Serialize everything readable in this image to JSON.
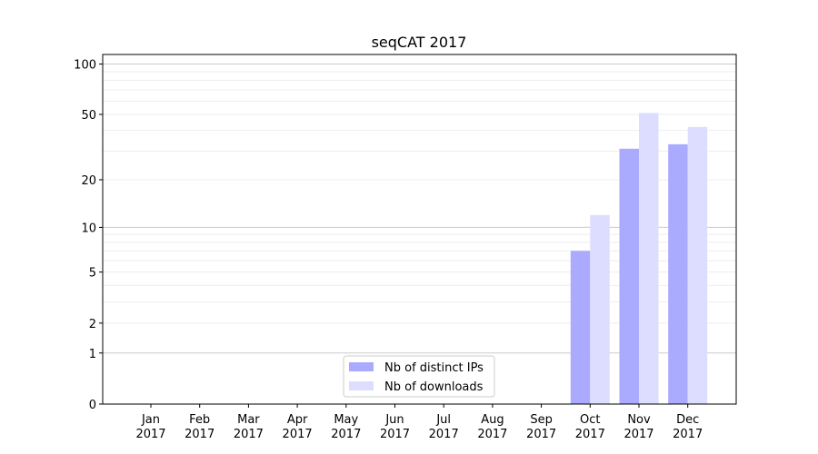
{
  "chart_data": {
    "type": "bar",
    "title": "seqCAT 2017",
    "xlabel": "",
    "ylabel": "",
    "yscale": "symlog (log of 1+y)",
    "ylim": [
      0,
      114
    ],
    "yticks": [
      0,
      1,
      2,
      5,
      10,
      20,
      50,
      100
    ],
    "ytick_labels": [
      "0",
      "1",
      "2",
      "5",
      "10",
      "20",
      "50",
      "100"
    ],
    "grid": true,
    "legend_position": "bottom-center",
    "categories": [
      "Jan\n2017",
      "Feb\n2017",
      "Mar\n2017",
      "Apr\n2017",
      "May\n2017",
      "Jun\n2017",
      "Jul\n2017",
      "Aug\n2017",
      "Sep\n2017",
      "Oct\n2017",
      "Nov\n2017",
      "Dec\n2017"
    ],
    "series": [
      {
        "name": "Nb of distinct IPs",
        "color": "#aaaaff",
        "values": [
          0,
          0,
          0,
          0,
          0,
          0,
          0,
          0,
          0,
          7,
          31,
          33
        ]
      },
      {
        "name": "Nb of downloads",
        "color": "#ddddff",
        "values": [
          0,
          0,
          0,
          0,
          0,
          0,
          0,
          0,
          0,
          12,
          51,
          42
        ]
      }
    ]
  }
}
